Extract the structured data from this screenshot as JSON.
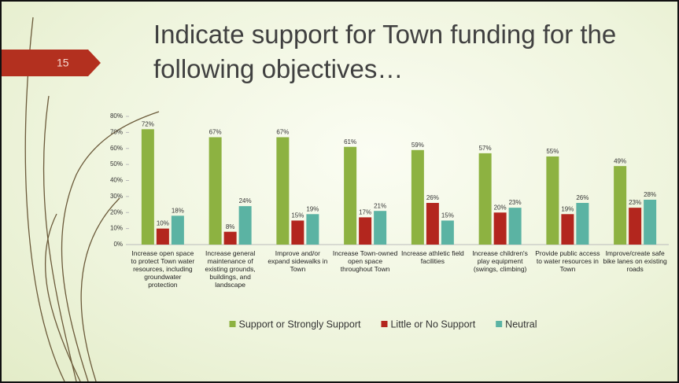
{
  "slide": {
    "number": "15",
    "title": "Indicate support for Town funding for the following objectives…"
  },
  "chart_data": {
    "type": "bar",
    "categories": [
      "Increase open space to protect Town water resources, including groundwater protection",
      "Increase general maintenance of existing grounds, buildings, and landscape",
      "Improve and/or expand sidewalks in Town",
      "Increase Town-owned open space throughout Town",
      "Increase athletic field facilities",
      "Increase children's play equipment (swings, climbing)",
      "Provide public access to water resources in Town",
      "Improve/create safe bike lanes on existing roads"
    ],
    "series": [
      {
        "name": "Support or Strongly Support",
        "color": "#8db241",
        "values": [
          72,
          67,
          67,
          61,
          59,
          57,
          55,
          49
        ],
        "value_labels": [
          "72%",
          "67%",
          "67%",
          "61%",
          "59%",
          "57%",
          "55%",
          "49%"
        ]
      },
      {
        "name": "Little or No Support",
        "color": "#b3261e",
        "values": [
          10,
          8,
          15,
          17,
          26,
          20,
          19,
          23
        ],
        "value_labels": [
          "10%",
          "8%",
          "15%",
          "17%",
          "26%",
          "20%",
          "19%",
          "23%"
        ]
      },
      {
        "name": "Neutral",
        "color": "#5bb3a3",
        "values": [
          18,
          24,
          19,
          21,
          15,
          23,
          26,
          28
        ],
        "value_labels": [
          "18%",
          "24%",
          "19%",
          "21%",
          "15%",
          "23%",
          "26%",
          "28%"
        ]
      }
    ],
    "ylim": [
      0,
      80
    ],
    "yticks": [
      {
        "value": 0,
        "label": "0%"
      },
      {
        "value": 10,
        "label": "10%"
      },
      {
        "value": 20,
        "label": "20%"
      },
      {
        "value": 30,
        "label": "30%"
      },
      {
        "value": 40,
        "label": "40%"
      },
      {
        "value": 50,
        "label": "50%"
      },
      {
        "value": 60,
        "label": "60%"
      },
      {
        "value": 70,
        "label": "70%"
      },
      {
        "value": 80,
        "label": "80%"
      }
    ],
    "legend": "bottom"
  }
}
